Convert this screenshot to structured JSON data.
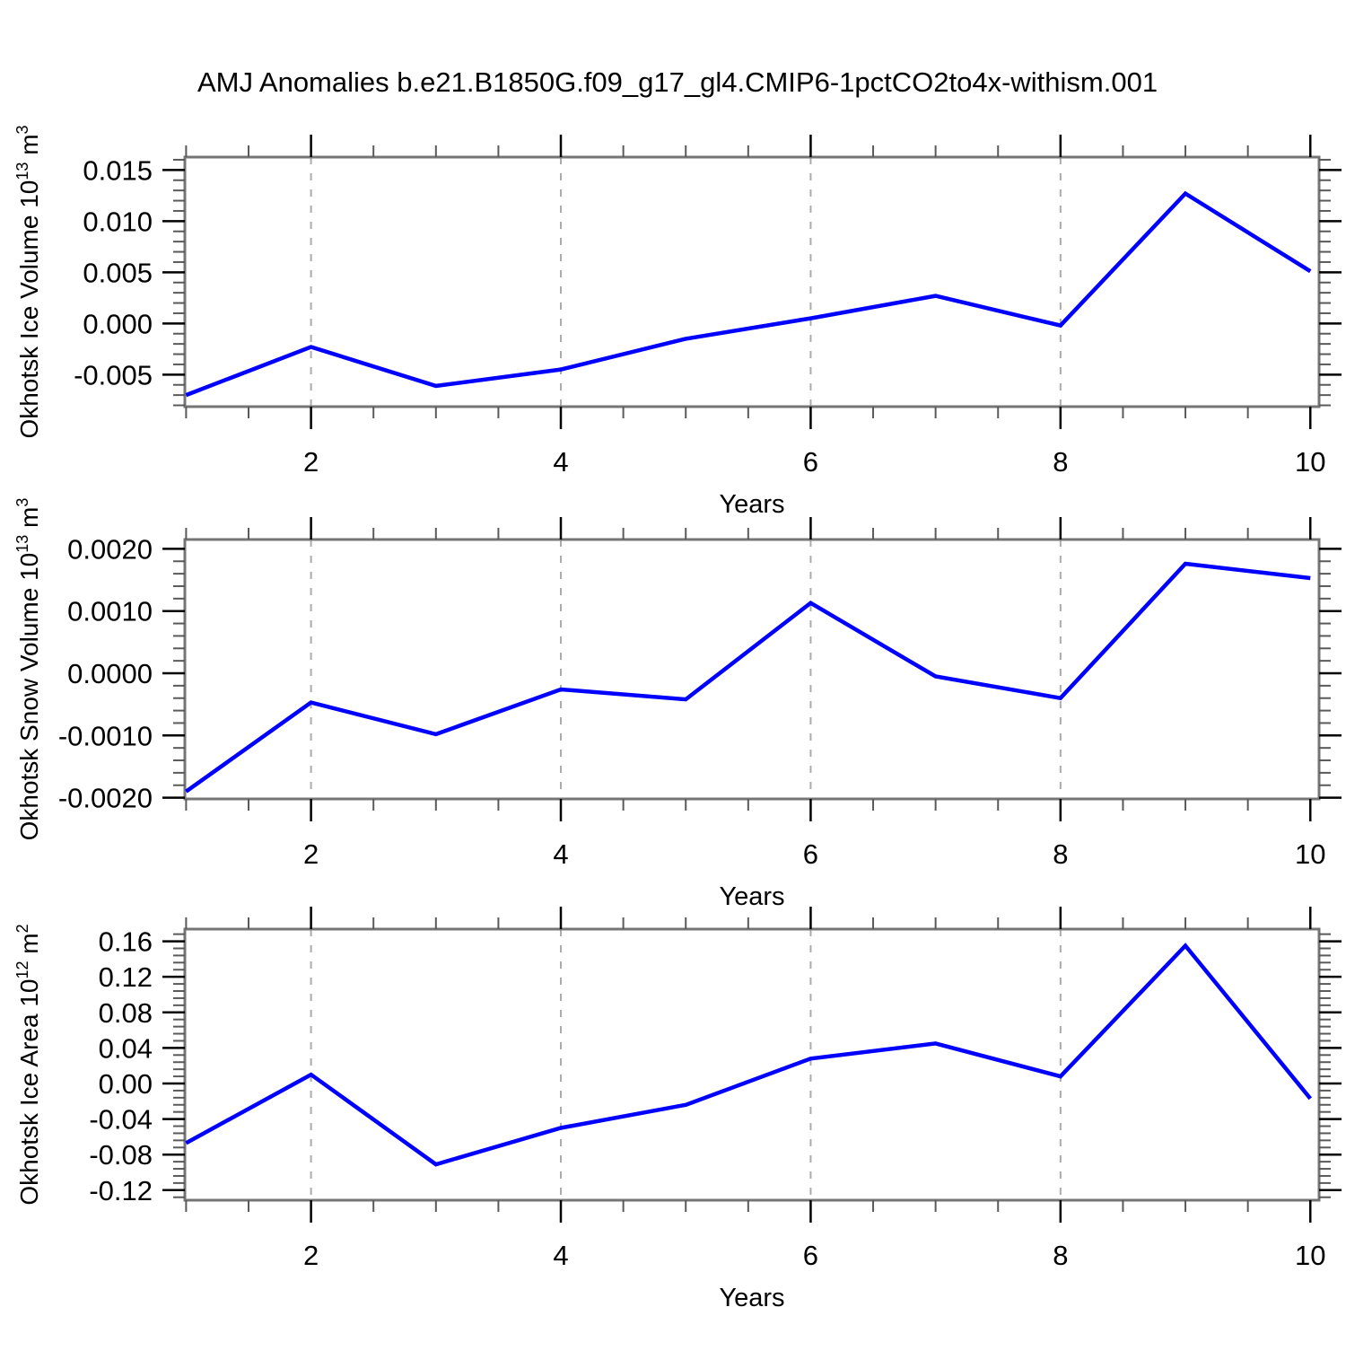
{
  "title": "AMJ Anomalies b.e21.B1850G.f09_g17_gl4.CMIP6-1pctCO2to4x-withism.001",
  "style": {
    "background": "#ffffff",
    "line_color": "#0000ff",
    "grid_color": "#ababab",
    "frame_color": "#757575",
    "major_tick_color": "#000000",
    "minor_tick_color": "#5a5a5a",
    "text_color": "#000000"
  },
  "chart_data": [
    {
      "type": "line",
      "series_name": "Okhotsk Ice Volume anomaly",
      "x": [
        1,
        2,
        3,
        4,
        5,
        6,
        7,
        8,
        9,
        10
      ],
      "values": [
        -0.007,
        -0.0023,
        -0.0061,
        -0.0045,
        -0.0015,
        0.0005,
        0.0027,
        -0.0002,
        0.0127,
        0.0051
      ],
      "xlabel": "Years",
      "ylabel": "Okhotsk Ice Volume 10¹³ m³",
      "ylabel_parts": [
        {
          "text": "Okhotsk Ice Volume 10",
          "sup": false
        },
        {
          "text": "13",
          "sup": true
        },
        {
          "text": " m",
          "sup": false
        },
        {
          "text": "3",
          "sup": true
        }
      ],
      "xlim": [
        0.99,
        10.07
      ],
      "ylim": [
        -0.00813,
        0.01626
      ],
      "x_major_ticks": [
        2,
        4,
        6,
        8,
        10
      ],
      "x_tick_labels": [
        "2",
        "4",
        "6",
        "8",
        "10"
      ],
      "x_minor_step": 0.5,
      "grid_x": [
        2,
        4,
        6,
        8
      ],
      "y_major_ticks": [
        0.015,
        0.01,
        0.005,
        0.0,
        -0.005
      ],
      "y_tick_labels": [
        "0.015",
        "0.010",
        "0.005",
        "0.000",
        "-0.005"
      ],
      "y_minor_step": 0.001,
      "grid": "vertical-dashed",
      "legend": "none"
    },
    {
      "type": "line",
      "series_name": "Okhotsk Snow Volume anomaly",
      "x": [
        1,
        2,
        3,
        4,
        5,
        6,
        7,
        8,
        9,
        10
      ],
      "values": [
        -0.0019,
        -0.00047,
        -0.00098,
        -0.00026,
        -0.00042,
        0.00113,
        -5e-05,
        -0.0004,
        0.00176,
        0.00153
      ],
      "xlabel": "Years",
      "ylabel": "Okhotsk Snow Volume 10¹³ m³",
      "ylabel_parts": [
        {
          "text": "Okhotsk Snow Volume 10",
          "sup": false
        },
        {
          "text": "13",
          "sup": true
        },
        {
          "text": " m",
          "sup": false
        },
        {
          "text": "3",
          "sup": true
        }
      ],
      "xlim": [
        0.99,
        10.07
      ],
      "ylim": [
        -0.00202,
        0.00215
      ],
      "x_major_ticks": [
        2,
        4,
        6,
        8,
        10
      ],
      "x_tick_labels": [
        "2",
        "4",
        "6",
        "8",
        "10"
      ],
      "x_minor_step": 0.5,
      "grid_x": [
        2,
        4,
        6,
        8
      ],
      "y_major_ticks": [
        0.002,
        0.001,
        0.0,
        -0.001,
        -0.002
      ],
      "y_tick_labels": [
        "0.0020",
        "0.0010",
        "0.0000",
        "-0.0010",
        "-0.0020"
      ],
      "y_minor_step": 0.0002,
      "grid": "vertical-dashed",
      "legend": "none"
    },
    {
      "type": "line",
      "series_name": "Okhotsk Ice Area anomaly",
      "x": [
        1,
        2,
        3,
        4,
        5,
        6,
        7,
        8,
        9,
        10
      ],
      "values": [
        -0.067,
        0.01,
        -0.091,
        -0.05,
        -0.024,
        0.028,
        0.045,
        0.008,
        0.155,
        -0.017
      ],
      "xlabel": "Years",
      "ylabel": "Okhotsk Ice Area 10¹² m²",
      "ylabel_parts": [
        {
          "text": "Okhotsk Ice Area 10",
          "sup": false
        },
        {
          "text": "12",
          "sup": true
        },
        {
          "text": " m",
          "sup": false
        },
        {
          "text": "2",
          "sup": true
        }
      ],
      "xlim": [
        0.99,
        10.07
      ],
      "ylim": [
        -0.1313,
        0.1737
      ],
      "x_major_ticks": [
        2,
        4,
        6,
        8,
        10
      ],
      "x_tick_labels": [
        "2",
        "4",
        "6",
        "8",
        "10"
      ],
      "x_minor_step": 0.5,
      "grid_x": [
        2,
        4,
        6,
        8
      ],
      "y_major_ticks": [
        0.16,
        0.12,
        0.08,
        0.04,
        0.0,
        -0.04,
        -0.08,
        -0.12
      ],
      "y_tick_labels": [
        "0.16",
        "0.12",
        "0.08",
        "0.04",
        "0.00",
        "-0.04",
        "-0.08",
        "-0.12"
      ],
      "y_minor_step": 0.008,
      "grid": "vertical-dashed",
      "legend": "none"
    }
  ]
}
